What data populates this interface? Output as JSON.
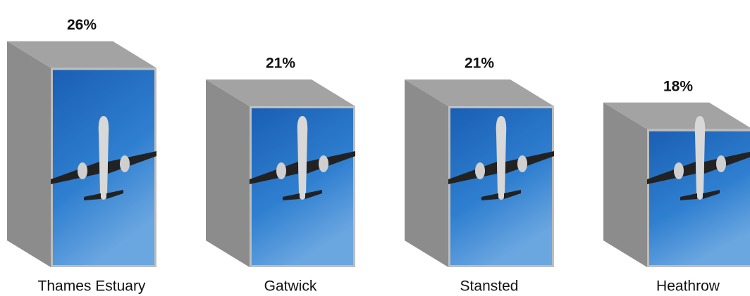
{
  "chart_data": {
    "type": "box3d",
    "categories": [
      "Thames Estuary",
      "Gatwick",
      "Stansted",
      "Heathrow"
    ],
    "values": [
      26,
      21,
      21,
      18
    ],
    "value_labels": [
      "26%",
      "21%",
      "21%",
      "18%"
    ]
  }
}
